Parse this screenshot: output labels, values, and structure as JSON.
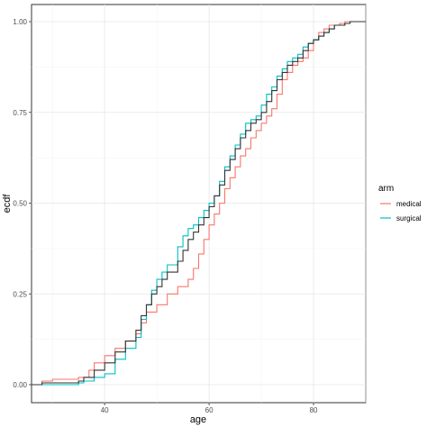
{
  "chart_data": {
    "type": "line",
    "title": "",
    "xlabel": "age",
    "ylabel": "ecdf",
    "xlim": [
      26,
      90
    ],
    "ylim": [
      0,
      1
    ],
    "x_ticks": [
      40,
      60,
      80
    ],
    "x_tick_labels": [
      "40",
      "60",
      "80"
    ],
    "y_ticks": [
      0,
      0.25,
      0.5,
      0.75,
      1
    ],
    "y_tick_labels": [
      "0.00",
      "0.25",
      "0.50",
      "0.75",
      "1.00"
    ],
    "grid": true,
    "legend": {
      "title": "arm",
      "position": "right"
    },
    "series": [
      {
        "name": "medical",
        "color": "#F8766D",
        "x": [
          26,
          28,
          30,
          35,
          37,
          38,
          40,
          42,
          44,
          46,
          47,
          48,
          50,
          52,
          54,
          56,
          57,
          58,
          59,
          60,
          61,
          62,
          63,
          64,
          65,
          66,
          67,
          68,
          69,
          70,
          71,
          72,
          73,
          74,
          75,
          76,
          77,
          78,
          79,
          80,
          81,
          82,
          83,
          85,
          86,
          87,
          90
        ],
        "y": [
          0,
          0.01,
          0.015,
          0.02,
          0.04,
          0.06,
          0.08,
          0.1,
          0.12,
          0.14,
          0.17,
          0.2,
          0.22,
          0.25,
          0.27,
          0.29,
          0.32,
          0.36,
          0.4,
          0.44,
          0.47,
          0.5,
          0.54,
          0.57,
          0.6,
          0.63,
          0.65,
          0.68,
          0.7,
          0.72,
          0.74,
          0.76,
          0.8,
          0.84,
          0.86,
          0.88,
          0.89,
          0.9,
          0.92,
          0.95,
          0.97,
          0.98,
          0.99,
          0.995,
          1.0,
          1.0,
          1.0
        ]
      },
      {
        "name": "surgical",
        "color": "#00BFC4",
        "x": [
          26,
          35,
          36,
          38,
          40,
          42,
          44,
          46,
          47,
          48,
          49,
          50,
          51,
          52,
          54,
          55,
          56,
          57,
          58,
          59,
          60,
          61,
          62,
          63,
          64,
          65,
          66,
          67,
          68,
          69,
          70,
          71,
          72,
          73,
          74,
          75,
          76,
          77,
          78,
          79,
          80,
          81,
          82,
          83,
          84,
          86,
          87,
          90
        ],
        "y": [
          0,
          0.005,
          0.01,
          0.02,
          0.03,
          0.07,
          0.1,
          0.13,
          0.18,
          0.22,
          0.26,
          0.29,
          0.31,
          0.33,
          0.38,
          0.41,
          0.43,
          0.44,
          0.46,
          0.48,
          0.5,
          0.52,
          0.56,
          0.6,
          0.63,
          0.66,
          0.69,
          0.72,
          0.73,
          0.74,
          0.77,
          0.8,
          0.82,
          0.85,
          0.87,
          0.89,
          0.9,
          0.91,
          0.93,
          0.94,
          0.95,
          0.96,
          0.97,
          0.98,
          0.99,
          0.995,
          1.0,
          1.0
        ]
      },
      {
        "name": "",
        "color": "#333333",
        "x": [
          26,
          28,
          35,
          36,
          38,
          40,
          42,
          44,
          46,
          47,
          48,
          49,
          50,
          51,
          52,
          54,
          55,
          56,
          57,
          58,
          59,
          60,
          61,
          62,
          63,
          64,
          65,
          66,
          67,
          68,
          69,
          70,
          71,
          72,
          73,
          74,
          75,
          76,
          77,
          78,
          79,
          80,
          81,
          82,
          83,
          84,
          86,
          87,
          90
        ],
        "y": [
          0,
          0.005,
          0.01,
          0.02,
          0.04,
          0.06,
          0.09,
          0.12,
          0.15,
          0.19,
          0.22,
          0.25,
          0.27,
          0.29,
          0.31,
          0.34,
          0.37,
          0.4,
          0.42,
          0.44,
          0.46,
          0.49,
          0.52,
          0.55,
          0.59,
          0.62,
          0.65,
          0.68,
          0.7,
          0.72,
          0.73,
          0.75,
          0.78,
          0.81,
          0.84,
          0.86,
          0.88,
          0.89,
          0.9,
          0.92,
          0.94,
          0.95,
          0.96,
          0.97,
          0.98,
          0.99,
          0.995,
          1.0,
          1.0
        ]
      }
    ]
  }
}
